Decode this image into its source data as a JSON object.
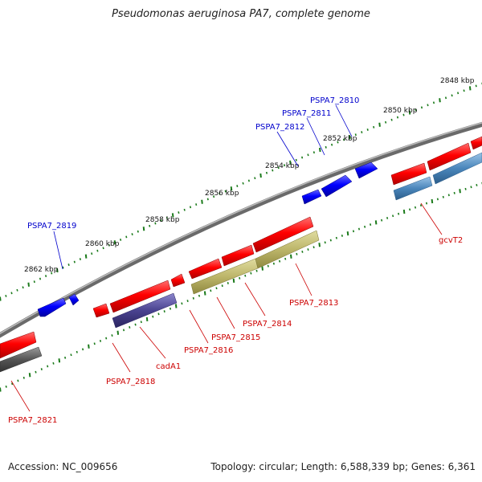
{
  "title": "Pseudomonas aeruginosa PA7, complete genome",
  "footer": {
    "accession": "Accession: NC_009656",
    "summary": "Topology: circular; Length: 6,588,339 bp; Genes: 6,361"
  },
  "colors": {
    "forward_gene": "#ff0000",
    "reverse_gene": "#0000ff",
    "backbone": "#888888",
    "ticks": "#1a7a1a"
  },
  "kbp_labels": [
    "2848 kbp",
    "2850 kbp",
    "2852 kbp",
    "2854 kbp",
    "2856 kbp",
    "2858 kbp",
    "2860 kbp",
    "2862 kbp"
  ],
  "gene_labels": [
    "PSPA7_2810",
    "PSPA7_2811",
    "PSPA7_2812",
    "PSPA7_2819",
    "gcvT2",
    "PSPA7_2813",
    "PSPA7_2814",
    "PSPA7_2815",
    "PSPA7_2816",
    "cadA1",
    "PSPA7_2818",
    "PSPA7_2821"
  ]
}
